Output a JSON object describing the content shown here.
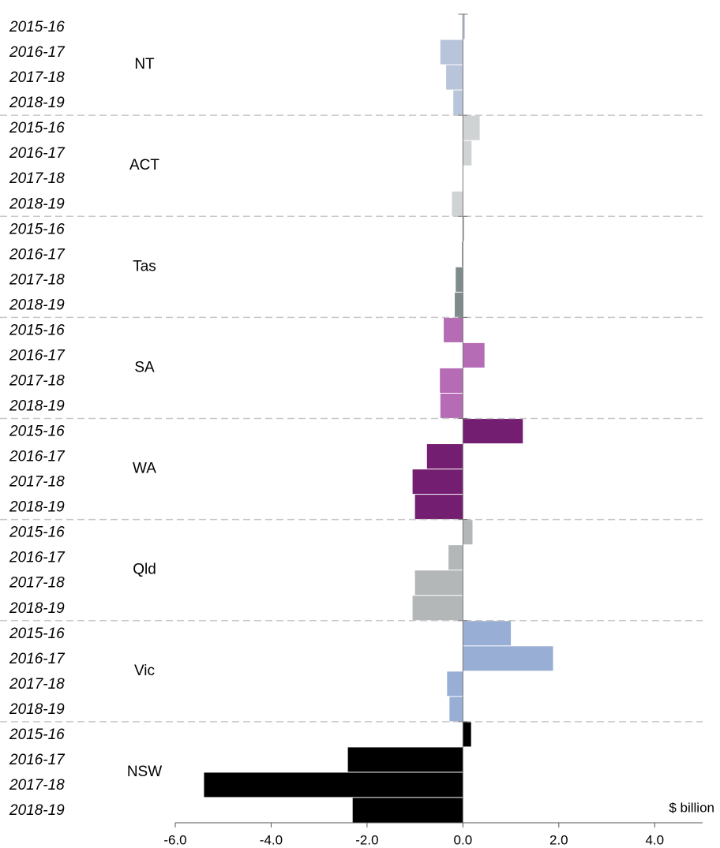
{
  "chart_data": {
    "type": "bar",
    "orientation": "horizontal",
    "x_label": "$ billion",
    "xlim": [
      -6,
      5
    ],
    "xticks": [
      {
        "value": -6,
        "label": "-6.0"
      },
      {
        "value": -4,
        "label": "-4.0"
      },
      {
        "value": -2,
        "label": "-2.0"
      },
      {
        "value": 0,
        "label": "0.0"
      },
      {
        "value": 2,
        "label": "2.0"
      },
      {
        "value": 4,
        "label": "4.0"
      }
    ],
    "groups": [
      {
        "name": "NT",
        "color": "#b8c4d9",
        "categories": [
          "2015-16",
          "2016-17",
          "2017-18",
          "2018-19"
        ],
        "values": [
          0.04,
          -0.47,
          -0.35,
          -0.2
        ]
      },
      {
        "name": "ACT",
        "color": "#d0d3d3",
        "categories": [
          "2015-16",
          "2016-17",
          "2017-18",
          "2018-19"
        ],
        "values": [
          0.35,
          0.18,
          0.0,
          -0.23
        ]
      },
      {
        "name": "Tas",
        "color": "#7f8a8b",
        "categories": [
          "2015-16",
          "2016-17",
          "2017-18",
          "2018-19"
        ],
        "values": [
          0.02,
          -0.02,
          -0.15,
          -0.17
        ]
      },
      {
        "name": "SA",
        "color": "#b66bb5",
        "categories": [
          "2015-16",
          "2016-17",
          "2017-18",
          "2018-19"
        ],
        "values": [
          -0.4,
          0.45,
          -0.48,
          -0.47
        ]
      },
      {
        "name": "WA",
        "color": "#731e70",
        "categories": [
          "2015-16",
          "2016-17",
          "2017-18",
          "2018-19"
        ],
        "values": [
          1.25,
          -0.75,
          -1.05,
          -1.0
        ]
      },
      {
        "name": "Qld",
        "color": "#b3b7b8",
        "categories": [
          "2015-16",
          "2016-17",
          "2017-18",
          "2018-19"
        ],
        "values": [
          0.2,
          -0.3,
          -1.0,
          -1.05
        ]
      },
      {
        "name": "Vic",
        "color": "#99aed4",
        "categories": [
          "2015-16",
          "2016-17",
          "2017-18",
          "2018-19"
        ],
        "values": [
          1.0,
          1.88,
          -0.33,
          -0.28
        ]
      },
      {
        "name": "NSW",
        "color": "#000000",
        "categories": [
          "2015-16",
          "2016-17",
          "2017-18",
          "2018-19"
        ],
        "values": [
          0.17,
          -2.4,
          -5.4,
          -2.3
        ]
      }
    ]
  }
}
